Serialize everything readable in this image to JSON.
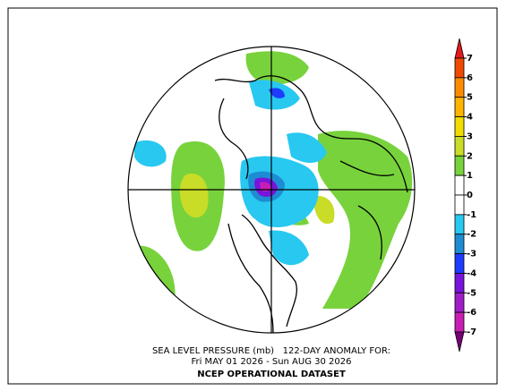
{
  "map": {
    "title": "SEA LEVEL PRESSURE (mb)   122-DAY ANOMALY FOR:",
    "dates": "Fri MAY 01 2026 - Sun AUG 30 2026",
    "source": "NCEP OPERATIONAL DATASET"
  },
  "colorbar": {
    "ticks": [
      7,
      6,
      5,
      4,
      3,
      2,
      1,
      0,
      -1,
      -2,
      -3,
      -4,
      -5,
      -6,
      -7
    ],
    "colors": [
      "#e41a1c",
      "#f04a00",
      "#ff8c00",
      "#ffb400",
      "#f0dc00",
      "#c8dc28",
      "#78d23c",
      "#ffffff",
      "#ffffff",
      "#28c8f0",
      "#1e8cd2",
      "#1e3cff",
      "#7814dc",
      "#a01ec8",
      "#c81eb4",
      "#780078"
    ]
  }
}
